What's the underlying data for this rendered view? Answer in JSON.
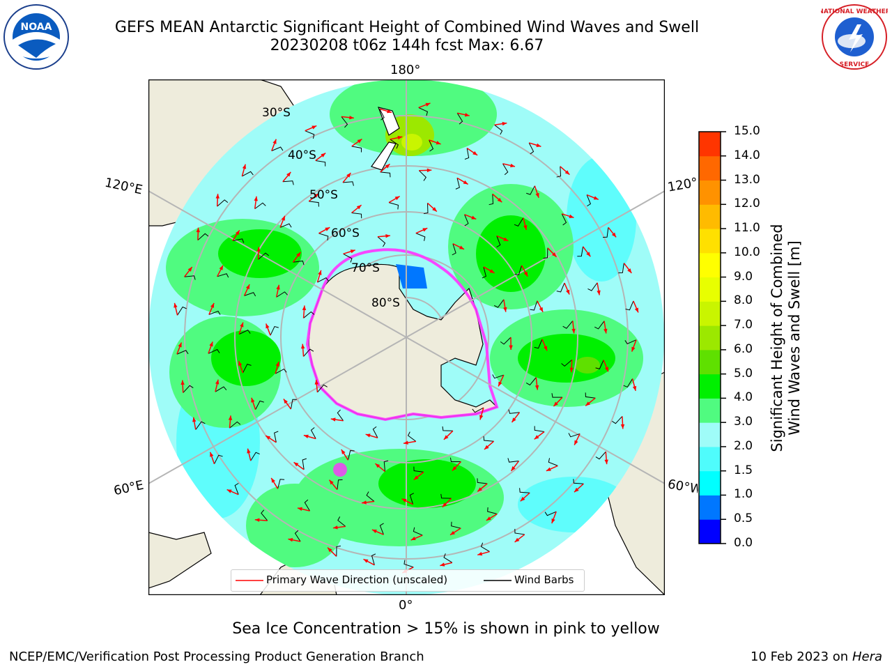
{
  "header": {
    "title_line1": "GEFS MEAN Antarctic Significant Height of Combined Wind Waves and Swell",
    "title_line2": "20230208 t06z 144h fcst   Max: 6.67"
  },
  "logos": {
    "noaa_text": "NOAA",
    "nws_text": "NATIONAL WEATHER SERVICE"
  },
  "map": {
    "projection": "south-polar-stereographic",
    "lon_labels": {
      "top": "180°",
      "bottom": "0°",
      "left_upper": "120°E",
      "left_lower": "60°E",
      "right_upper": "120°W",
      "right_lower": "60°W"
    },
    "lat_labels": [
      "30°S",
      "40°S",
      "50°S",
      "60°S",
      "70°S",
      "80°S"
    ],
    "colors": {
      "land": "#eeecdc",
      "ocean_base": "#9ffcf8",
      "graticule": "#b5b5b5",
      "wave_arrow": "#ff0000",
      "wind_barb": "#000000",
      "ice": "#ff33ff"
    }
  },
  "colorbar": {
    "label_line1": "Significant Height of Combined",
    "label_line2": "Wind Waves and Swell [m]",
    "ticks": [
      "15.0",
      "14.0",
      "13.0",
      "12.0",
      "11.0",
      "10.0",
      "9.0",
      "8.0",
      "7.0",
      "6.0",
      "5.0",
      "4.0",
      "3.0",
      "2.0",
      "1.5",
      "1.0",
      "0.5",
      "0.0"
    ],
    "colors_bottom_to_top": [
      "#0000ff",
      "#0077ff",
      "#00ffff",
      "#4ffcfc",
      "#9ffcf8",
      "#50fb80",
      "#00f000",
      "#5fe000",
      "#9ce800",
      "#c9f500",
      "#e8ff00",
      "#ffff00",
      "#ffe000",
      "#ffbb00",
      "#ff9200",
      "#ff6800",
      "#ff3500",
      "#ff0000"
    ]
  },
  "legend": {
    "wave_label": "Primary Wave Direction (unscaled)",
    "wind_label": "Wind Barbs"
  },
  "footer": {
    "note": "Sea Ice Concentration > 15% is shown in pink to yellow",
    "left": "NCEP/EMC/Verification Post Processing Product Generation Branch",
    "right_date": "10 Feb 2023 on",
    "right_host": "Hera"
  }
}
